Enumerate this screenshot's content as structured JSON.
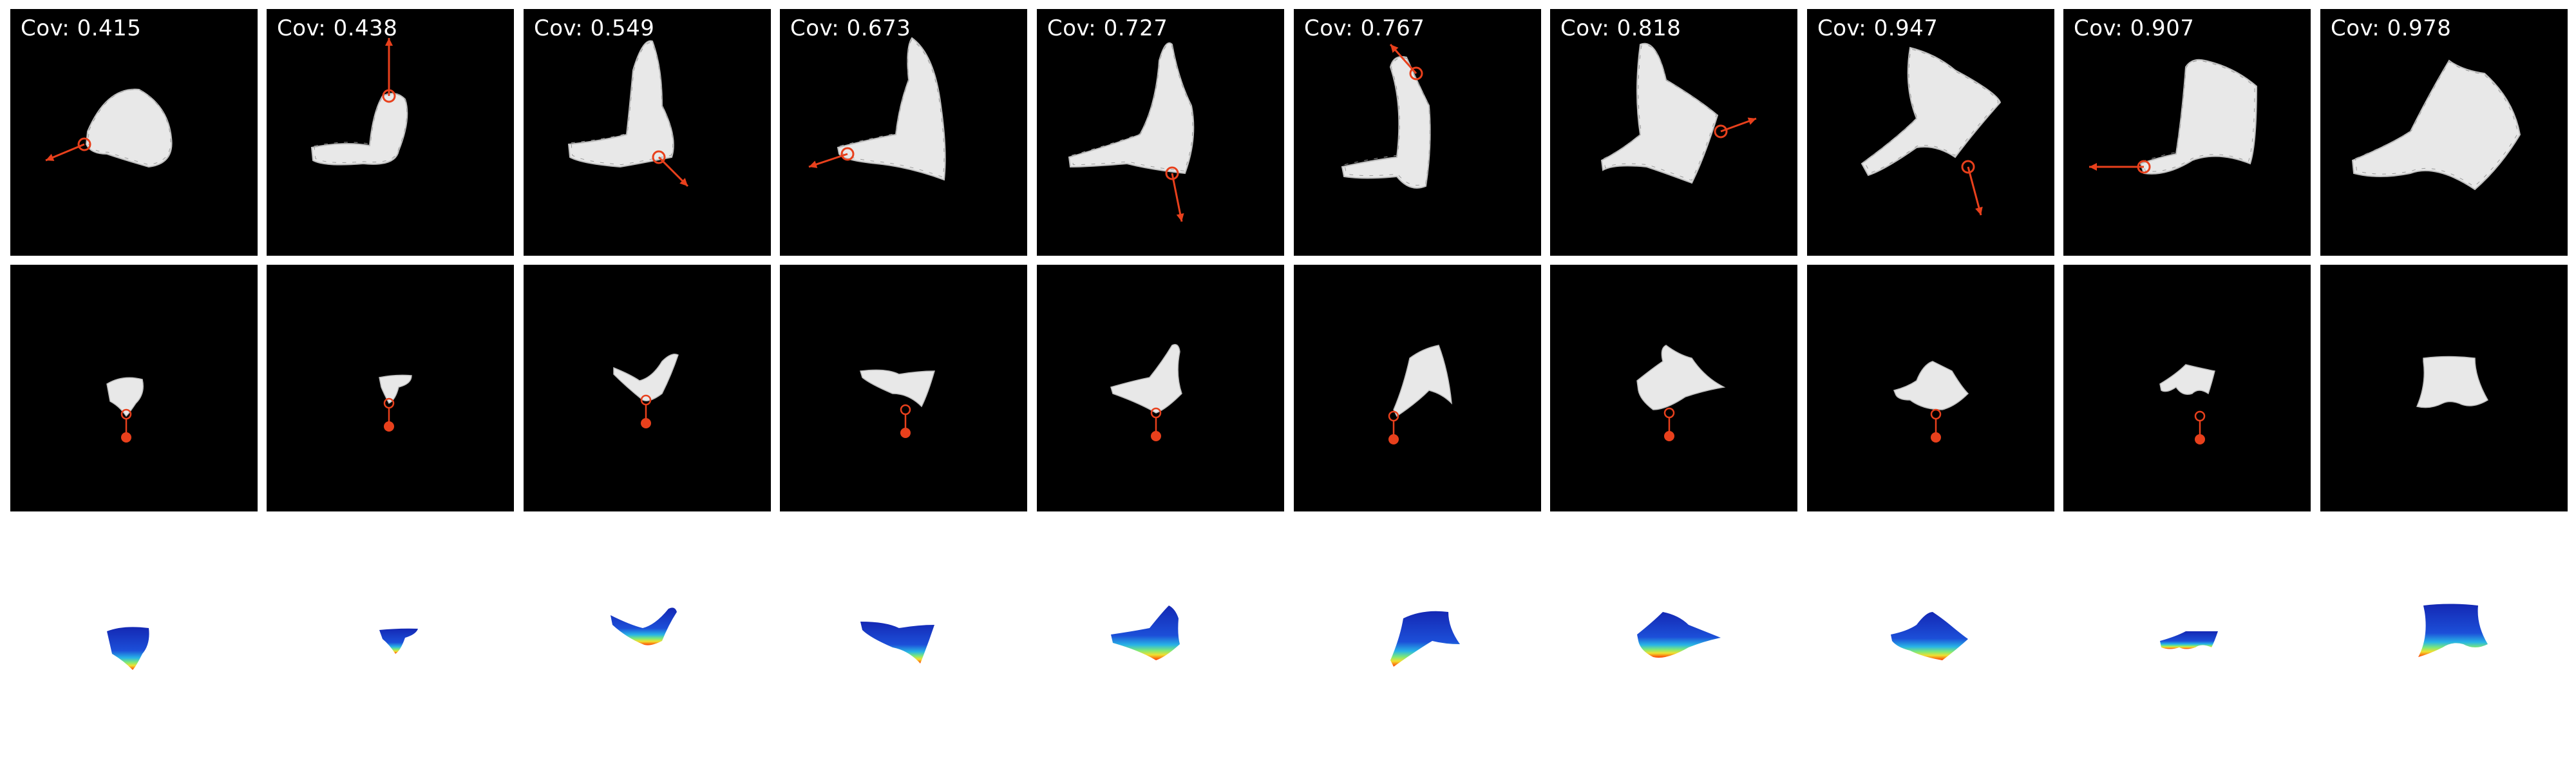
{
  "panels": [
    {
      "coverage_label": "Cov: 0.415"
    },
    {
      "coverage_label": "Cov: 0.438"
    },
    {
      "coverage_label": "Cov: 0.549"
    },
    {
      "coverage_label": "Cov: 0.673"
    },
    {
      "coverage_label": "Cov: 0.727"
    },
    {
      "coverage_label": "Cov: 0.767"
    },
    {
      "coverage_label": "Cov: 0.818"
    },
    {
      "coverage_label": "Cov: 0.947"
    },
    {
      "coverage_label": "Cov: 0.907"
    },
    {
      "coverage_label": "Cov: 0.978"
    }
  ],
  "colors": {
    "background": "#000000",
    "cloth": "#e8e8e8",
    "action_arrow": "#e8401c",
    "depth_low": "#1428b4",
    "depth_high": "#ff3c00"
  },
  "icons": {
    "pick_point": "circle-marker-icon",
    "action": "arrow-icon"
  }
}
